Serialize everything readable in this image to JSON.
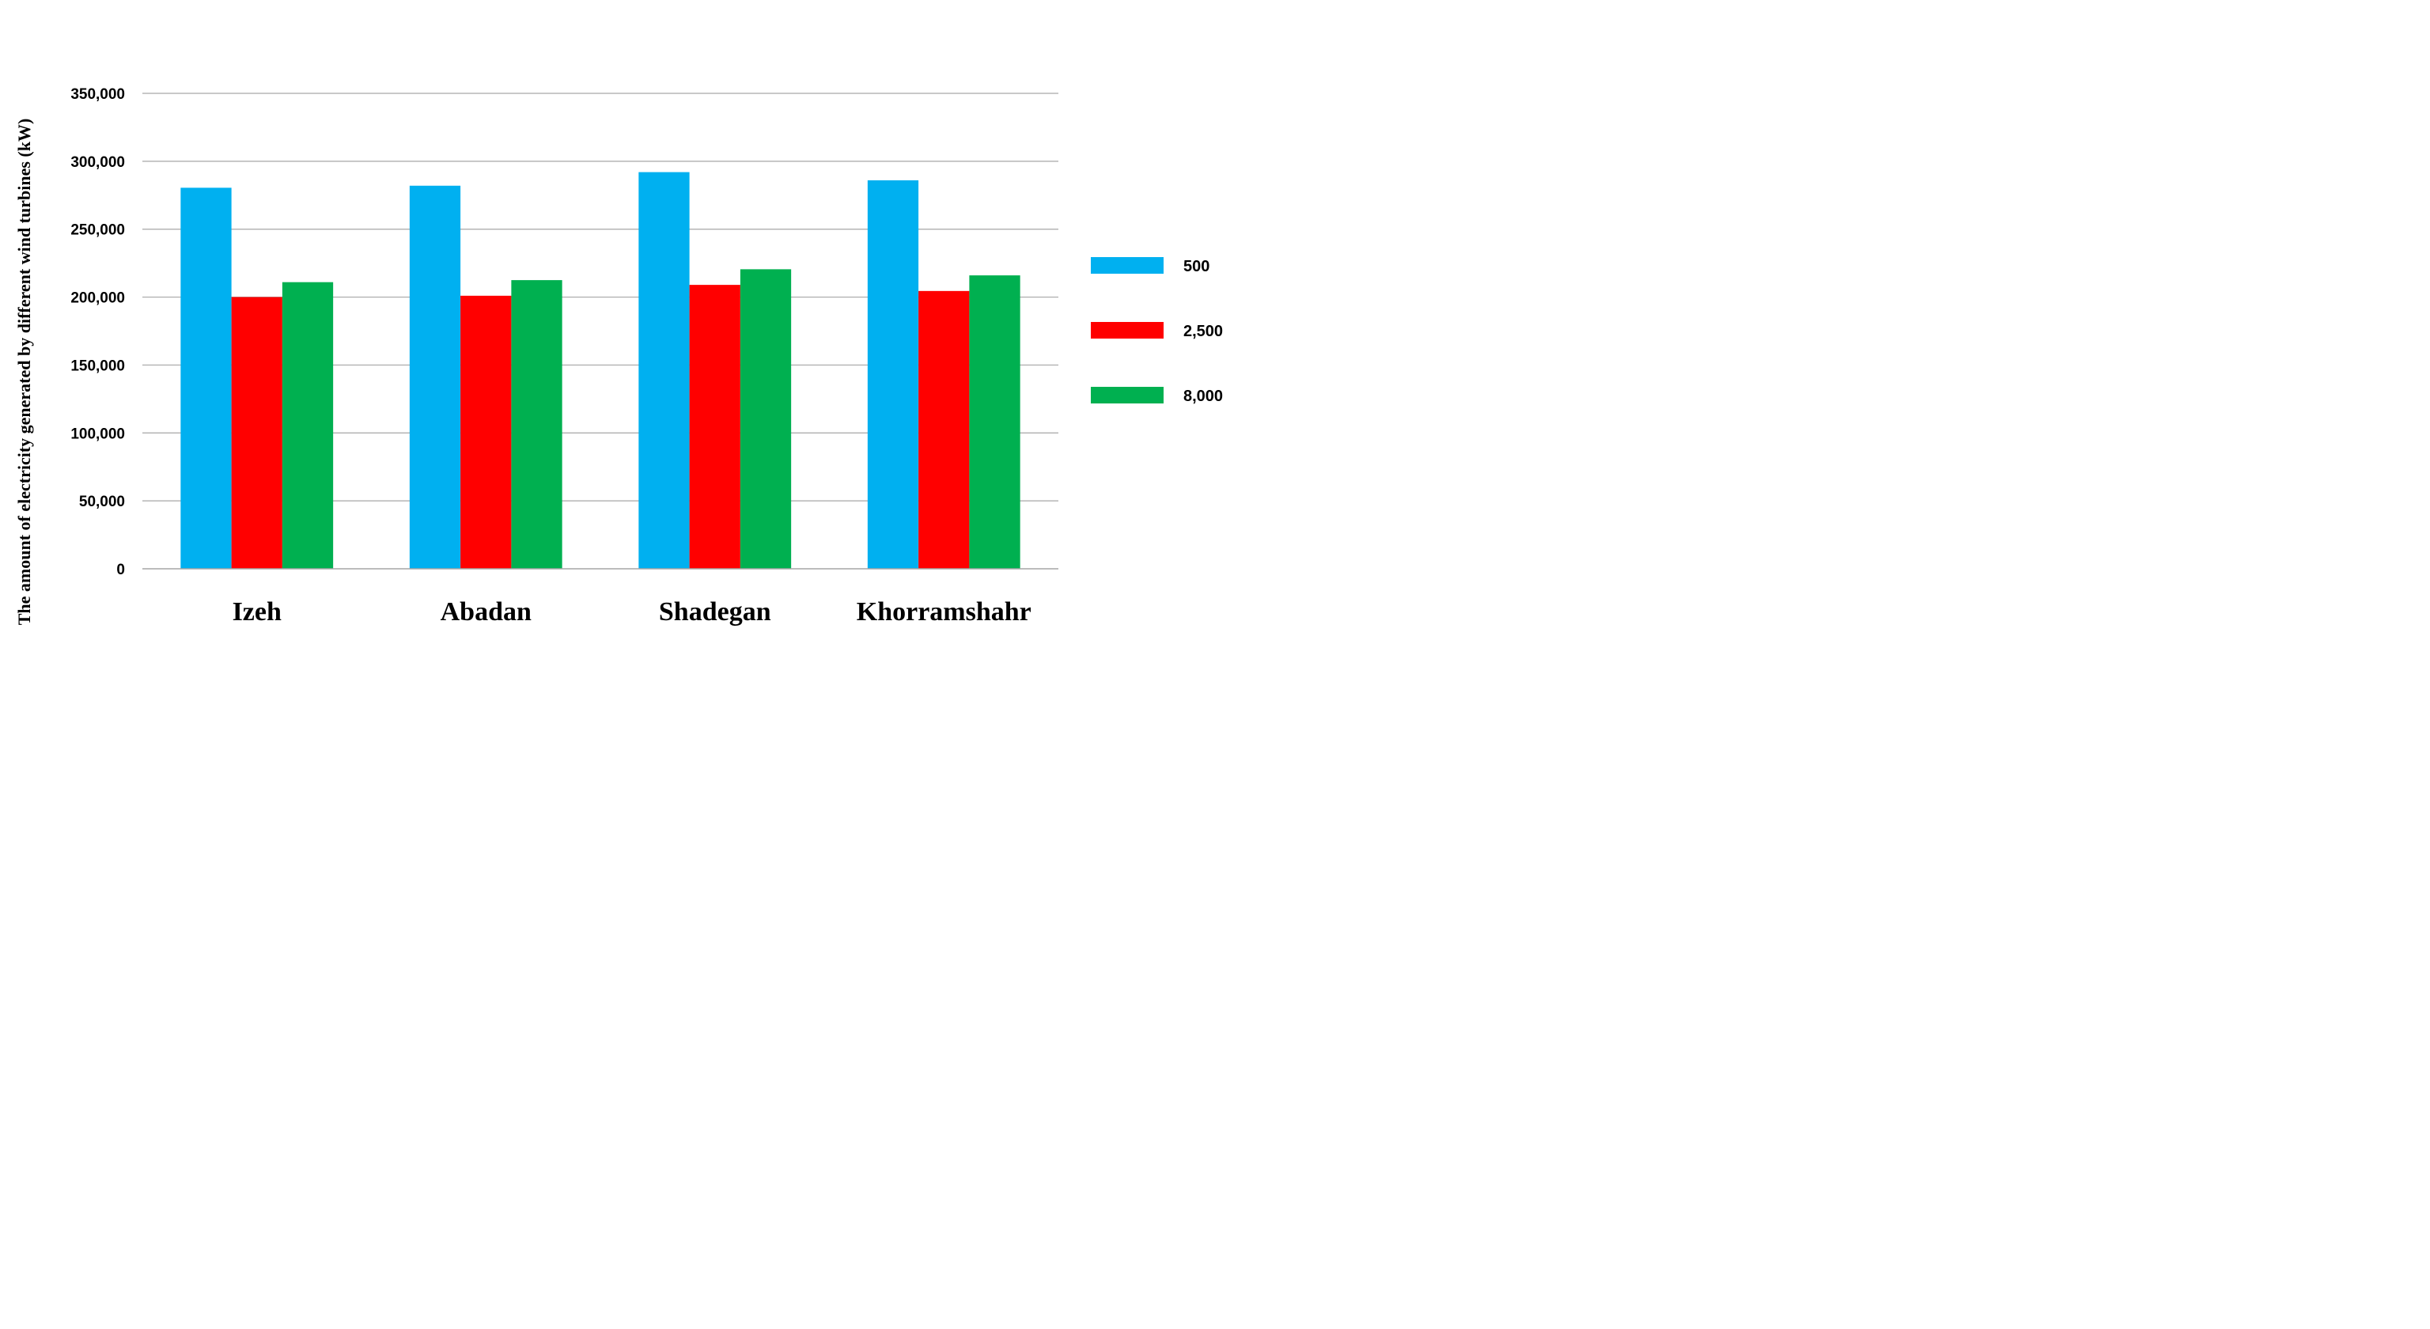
{
  "chart_data": {
    "type": "bar",
    "title": "",
    "xlabel": "",
    "ylabel": "The amount of electricity generated by different wind turbines (kW)",
    "categories": [
      "Izeh",
      "Abadan",
      "Shadegan",
      "Khorramshahr"
    ],
    "series": [
      {
        "name": "500",
        "color": "#00b0f0",
        "values": [
          280500,
          282000,
          292000,
          286000
        ]
      },
      {
        "name": "2,500",
        "color": "#ff0000",
        "values": [
          200000,
          201000,
          209000,
          204500
        ]
      },
      {
        "name": "8,000",
        "color": "#00b050",
        "values": [
          211000,
          212500,
          220500,
          216000
        ]
      }
    ],
    "ylim": [
      0,
      350000
    ],
    "yticks": [
      0,
      50000,
      100000,
      150000,
      200000,
      250000,
      300000,
      350000
    ],
    "ytick_labels": [
      "0",
      "50,000",
      "100,000",
      "150,000",
      "200,000",
      "250,000",
      "300,000",
      "350,000"
    ],
    "grid": true,
    "legend_position": "right"
  }
}
